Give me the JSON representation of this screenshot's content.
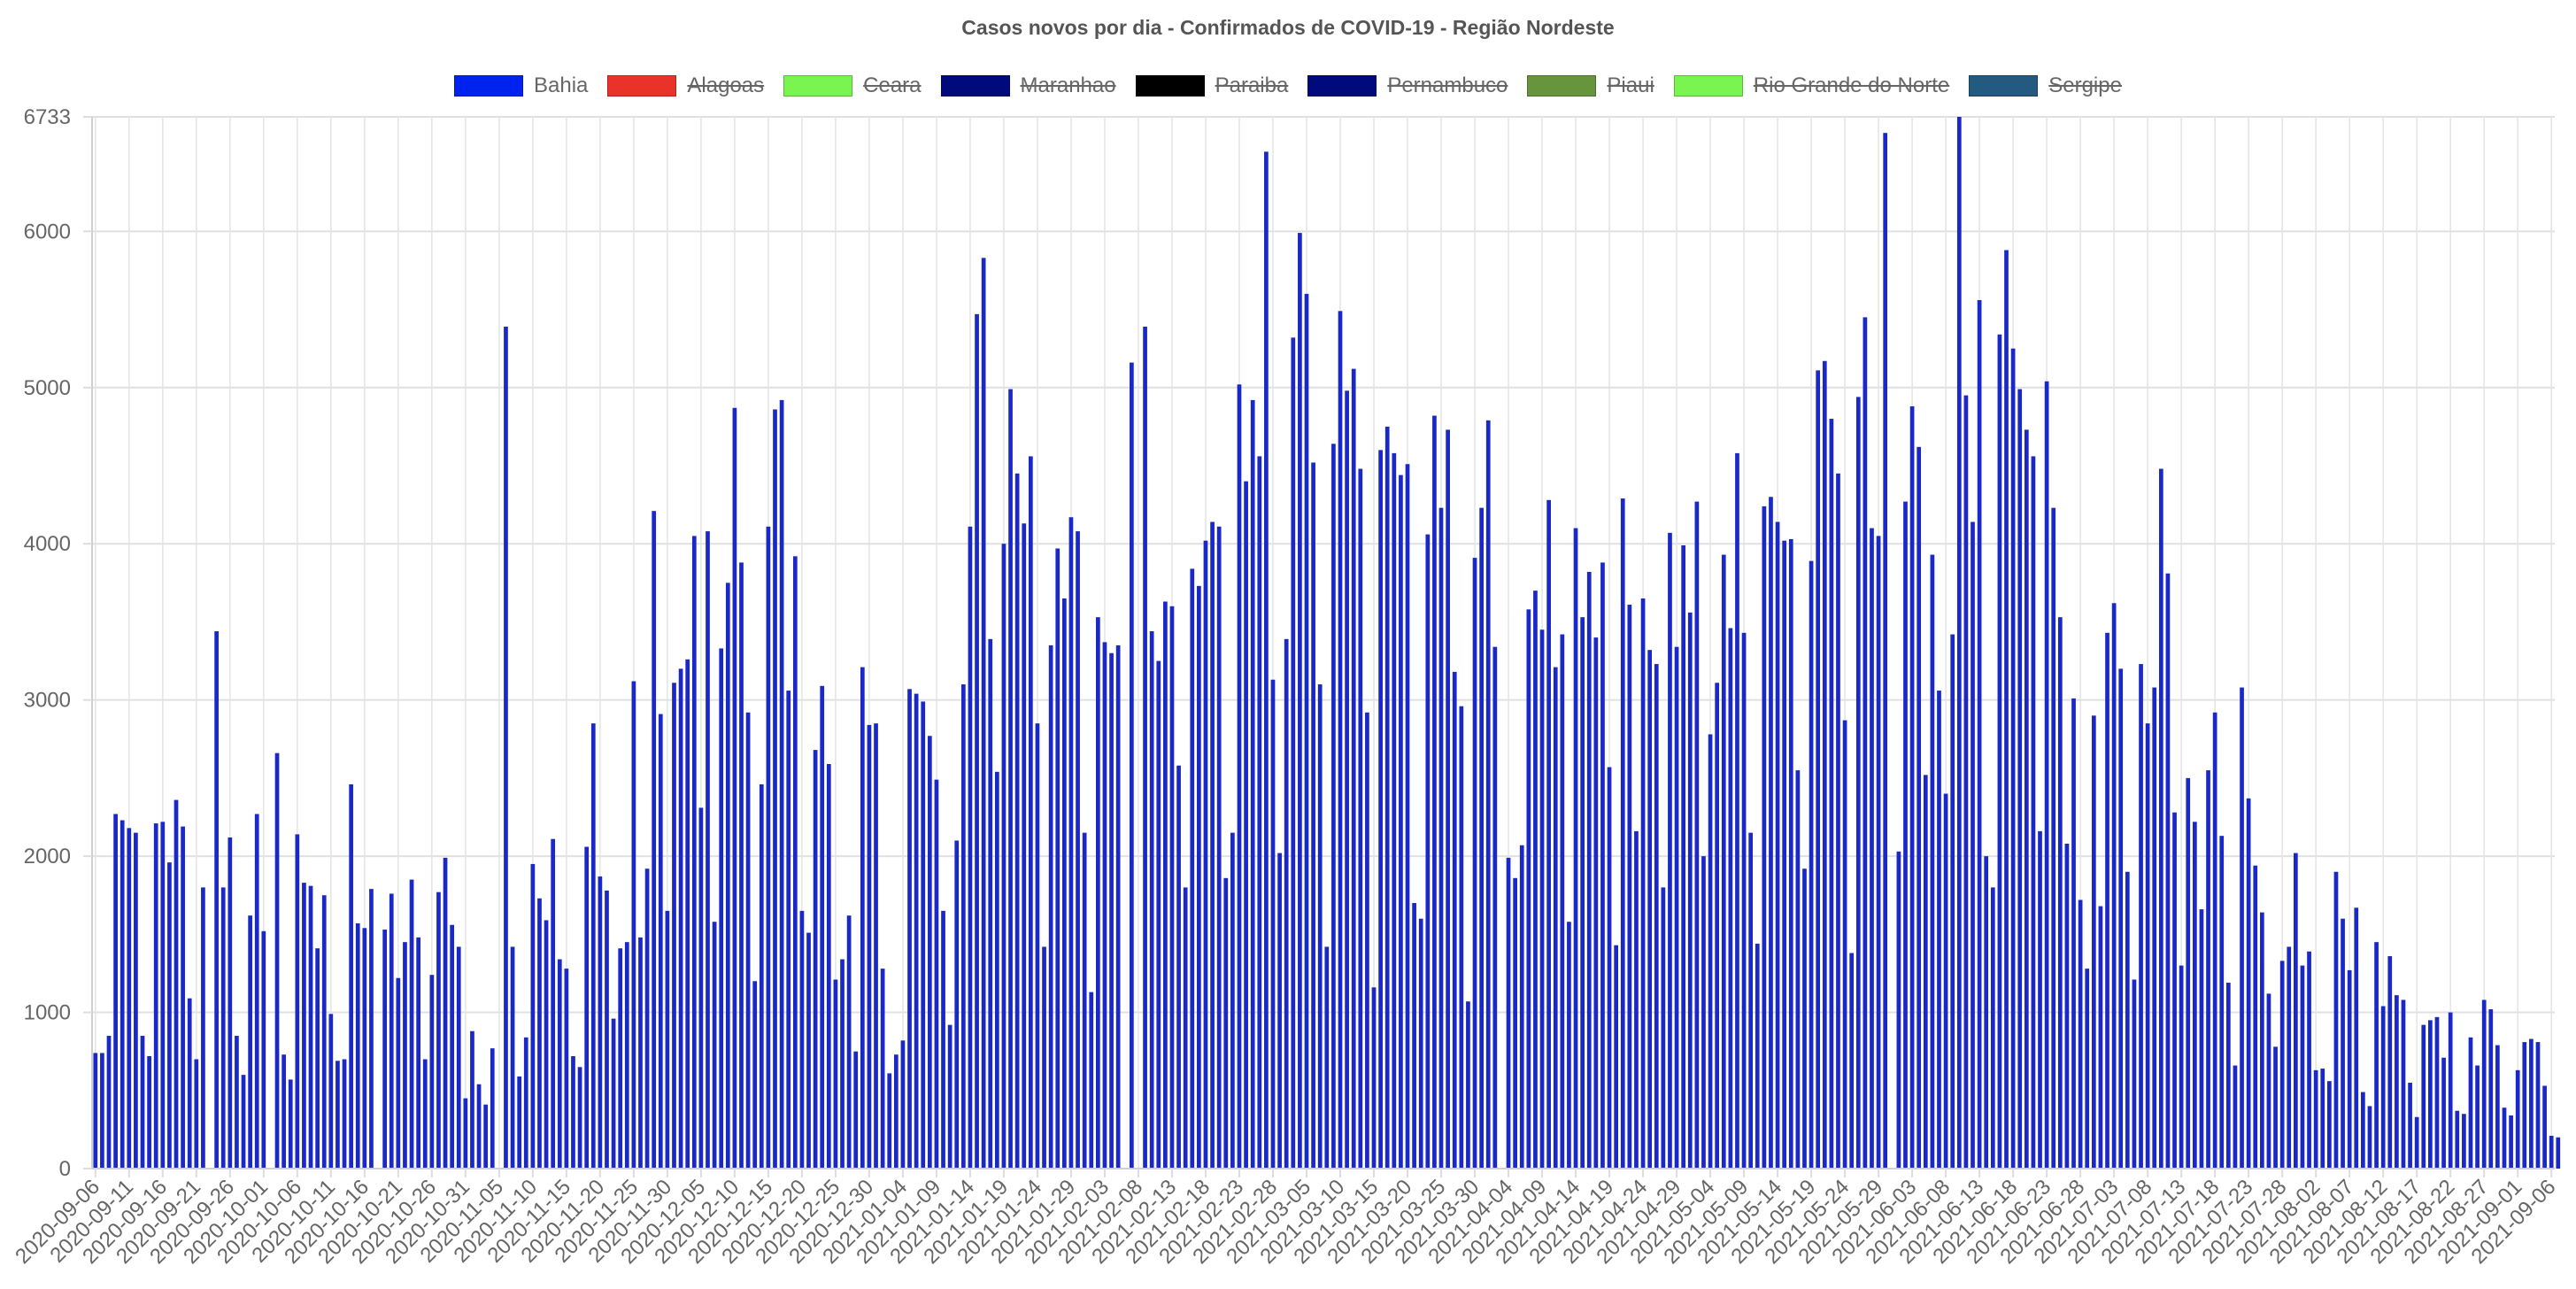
{
  "chart_data": {
    "type": "bar",
    "title": "Casos novos por dia - Confirmados de COVID-19 - Região Nordeste",
    "start_date": "2020-09-06",
    "end_date": "2021-09-06",
    "ylim": [
      0,
      6733
    ],
    "yticks": [
      0,
      1000,
      2000,
      3000,
      4000,
      5000,
      6000,
      6733
    ],
    "xtick_labels": [
      "2020-09-06",
      "2020-09-11",
      "2020-09-16",
      "2020-09-21",
      "2020-09-26",
      "2020-10-01",
      "2020-10-06",
      "2020-10-11",
      "2020-10-16",
      "2020-10-21",
      "2020-10-26",
      "2020-10-31",
      "2020-11-05",
      "2020-11-10",
      "2020-11-15",
      "2020-11-20",
      "2020-11-25",
      "2020-11-30",
      "2020-12-05",
      "2020-12-10",
      "2020-12-15",
      "2020-12-20",
      "2020-12-25",
      "2020-12-30",
      "2021-01-04",
      "2021-01-09",
      "2021-01-14",
      "2021-01-19",
      "2021-01-24",
      "2021-01-29",
      "2021-02-03",
      "2021-02-08",
      "2021-02-13",
      "2021-02-18",
      "2021-02-23",
      "2021-02-28",
      "2021-03-05",
      "2021-03-10",
      "2021-03-15",
      "2021-03-20",
      "2021-03-25",
      "2021-03-30",
      "2021-04-04",
      "2021-04-09",
      "2021-04-14",
      "2021-04-19",
      "2021-04-24",
      "2021-04-29",
      "2021-05-04",
      "2021-05-09",
      "2021-05-14",
      "2021-05-19",
      "2021-05-24",
      "2021-05-29",
      "2021-06-03",
      "2021-06-08",
      "2021-06-13",
      "2021-06-18",
      "2021-06-23",
      "2021-06-28",
      "2021-07-03",
      "2021-07-08",
      "2021-07-13",
      "2021-07-18",
      "2021-07-23",
      "2021-07-28",
      "2021-08-02",
      "2021-08-07",
      "2021-08-12",
      "2021-08-17",
      "2021-08-22",
      "2021-08-27",
      "2021-09-01",
      "2021-09-06"
    ],
    "grid": true,
    "legend_position": "top",
    "series": [
      {
        "name": "Bahia",
        "color": "#0022ee",
        "visible": true,
        "values": [
          740,
          740,
          850,
          2270,
          2230,
          2180,
          2150,
          850,
          720,
          2210,
          2220,
          1960,
          2360,
          2190,
          1090,
          700,
          1800,
          0,
          3440,
          1800,
          2120,
          850,
          600,
          1620,
          2270,
          1520,
          0,
          2660,
          730,
          570,
          2140,
          1830,
          1810,
          1410,
          1750,
          990,
          690,
          700,
          2460,
          1570,
          1540,
          1790,
          0,
          1530,
          1760,
          1220,
          1450,
          1850,
          1480,
          700,
          1240,
          1770,
          1990,
          1560,
          1420,
          450,
          880,
          540,
          410,
          770,
          0,
          5390,
          1420,
          590,
          840,
          1950,
          1730,
          1590,
          2110,
          1340,
          1280,
          720,
          650,
          2060,
          2850,
          1870,
          1780,
          960,
          1410,
          1450,
          3120,
          1480,
          1920,
          4210,
          2910,
          1650,
          3110,
          3200,
          3260,
          4050,
          2310,
          4080,
          1580,
          3330,
          3750,
          4870,
          3880,
          2920,
          1200,
          2460,
          4110,
          4860,
          4920,
          3060,
          3920,
          1650,
          1510,
          2680,
          3090,
          2590,
          1210,
          1340,
          1620,
          750,
          3210,
          2840,
          2850,
          1280,
          610,
          730,
          820,
          3070,
          3040,
          2990,
          2770,
          2490,
          1650,
          920,
          2100,
          3100,
          4110,
          5470,
          5830,
          3390,
          2540,
          4000,
          4990,
          4450,
          4130,
          4560,
          2850,
          1420,
          3350,
          3970,
          3650,
          4170,
          4080,
          2150,
          1130,
          3530,
          3370,
          3300,
          3350,
          0,
          5160,
          0,
          5390,
          3440,
          3250,
          3630,
          3600,
          2580,
          1800,
          3840,
          3730,
          4020,
          4140,
          4110,
          1860,
          2150,
          5020,
          4400,
          4920,
          4560,
          6510,
          3130,
          2020,
          3390,
          5320,
          5990,
          5600,
          4520,
          3100,
          1420,
          4640,
          5490,
          4980,
          5120,
          4480,
          2920,
          1160,
          4600,
          4750,
          4580,
          4440,
          4510,
          1700,
          1600,
          4060,
          4820,
          4230,
          4730,
          3180,
          2960,
          1070,
          3910,
          4230,
          4790,
          3340,
          0,
          1990,
          1860,
          2070,
          3580,
          3700,
          3450,
          4280,
          3210,
          3420,
          1580,
          4100,
          3530,
          3820,
          3400,
          3880,
          2570,
          1430,
          4290,
          3610,
          2160,
          3650,
          3320,
          3230,
          1800,
          4070,
          3340,
          3990,
          3560,
          4270,
          2000,
          2780,
          3110,
          3930,
          3460,
          4580,
          3430,
          2150,
          1440,
          4240,
          4300,
          4140,
          4020,
          4030,
          2550,
          1920,
          3890,
          5110,
          5170,
          4800,
          4450,
          2870,
          1380,
          4940,
          5450,
          4100,
          4050,
          6630,
          0,
          2030,
          4270,
          4880,
          4620,
          2520,
          3930,
          3060,
          2400,
          3420,
          6733,
          4950,
          4140,
          5560,
          2000,
          1800,
          5340,
          5880,
          5250,
          4990,
          4730,
          4560,
          2160,
          5040,
          4230,
          3530,
          2080,
          3010,
          1720,
          1280,
          2900,
          1680,
          3430,
          3620,
          3200,
          1900,
          1210,
          3230,
          2850,
          3080,
          4480,
          3810,
          2280,
          1300,
          2500,
          2220,
          1660,
          2550,
          2920,
          2130,
          1190,
          660,
          3080,
          2370,
          1940,
          1640,
          1120,
          780,
          1330,
          1420,
          2020,
          1300,
          1390,
          630,
          640,
          560,
          1900,
          1600,
          1270,
          1670,
          490,
          400,
          1450,
          1040,
          1360,
          1110,
          1080,
          550,
          330,
          920,
          950,
          970,
          710,
          1000,
          370,
          350,
          840,
          660,
          1080,
          1020,
          790,
          390,
          340,
          630,
          810,
          830,
          810,
          530,
          210,
          200
        ]
      },
      {
        "name": "Alagoas",
        "color": "#e8322a",
        "visible": false
      },
      {
        "name": "Ceara",
        "color": "#7af54f",
        "visible": false
      },
      {
        "name": "Maranhao",
        "color": "#000a7d",
        "visible": false
      },
      {
        "name": "Paraiba",
        "color": "#000000",
        "visible": false
      },
      {
        "name": "Pernambuco",
        "color": "#000a7d",
        "visible": false
      },
      {
        "name": "Piaui",
        "color": "#67953d",
        "visible": false
      },
      {
        "name": "Rio Grande do Norte",
        "color": "#7af54f",
        "visible": false
      },
      {
        "name": "Sergipe",
        "color": "#255a80",
        "visible": false
      }
    ]
  }
}
